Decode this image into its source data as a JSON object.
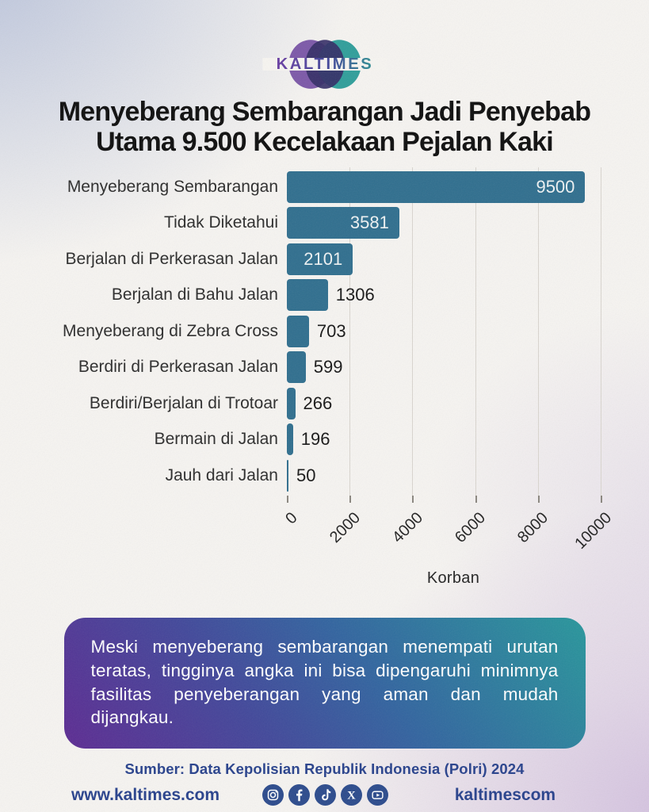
{
  "brand": {
    "logo_text": "KALTIMES"
  },
  "title": {
    "line1": "Menyeberang Sembarangan Jadi Penyebab",
    "line2": "Utama 9.500 Kecelakaan Pejalan Kaki"
  },
  "chart_data": {
    "type": "bar",
    "orientation": "horizontal",
    "categories": [
      "Menyeberang Sembarangan",
      "Tidak Diketahui",
      "Berjalan di Perkerasan Jalan",
      "Berjalan di Bahu Jalan",
      "Menyeberang di Zebra Cross",
      "Berdiri di Perkerasan Jalan",
      "Berdiri/Berjalan di Trotoar",
      "Bermain di Jalan",
      "Jauh dari Jalan"
    ],
    "values": [
      9500,
      3581,
      2101,
      1306,
      703,
      599,
      266,
      196,
      50
    ],
    "xticks": [
      0,
      2000,
      4000,
      6000,
      8000,
      10000
    ],
    "xlim": [
      0,
      10600
    ],
    "xlabel": "Korban",
    "grid": true,
    "bar_color": "#2f6e8e",
    "value_labels": true
  },
  "callout": {
    "text": "Meski menyeberang sembarangan menempati urutan teratas, tingginya angka ini bisa dipengaruhi minimnya fasilitas penyeberangan yang aman dan mudah dijangkau."
  },
  "footer": {
    "source": "Sumber: Data Kepolisian Republik Indonesia (Polri) 2024",
    "website": "www.kaltimes.com",
    "social_handle": "kaltimescom",
    "social_icons": [
      "instagram",
      "facebook",
      "tiktok",
      "x",
      "youtube"
    ]
  },
  "colors": {
    "bar": "#2f6e8e",
    "gridline": "#d9d5cf",
    "footer_navy": "#27418c",
    "social_circle": "#2b4a8c",
    "callout_gradient_start": "#5c2a92",
    "callout_gradient_end": "#27969b",
    "logo_purple": "#7c58a8",
    "logo_navy": "#332d66",
    "logo_teal": "#2f9e9a"
  }
}
